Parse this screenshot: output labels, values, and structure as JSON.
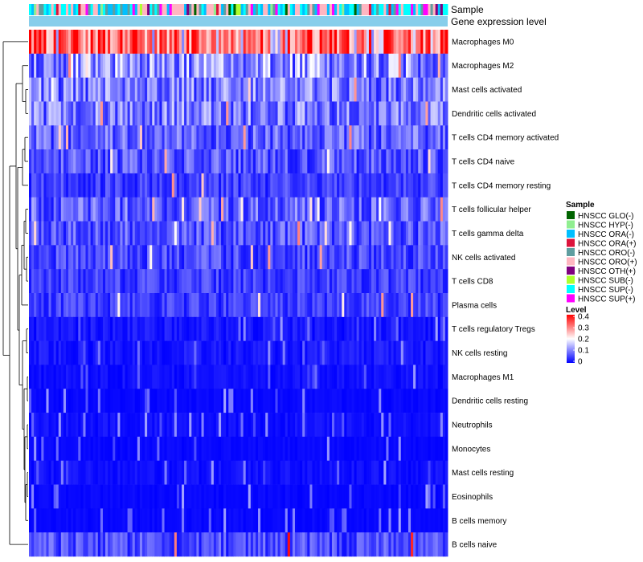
{
  "chart_data": {
    "type": "heatmap",
    "title": "",
    "annotation_tracks": [
      "Sample",
      "Gene expression level"
    ],
    "rows": [
      "Macrophages M0",
      "Macrophages M2",
      "Mast cells activated",
      "Dendritic cells activated",
      "T cells CD4 memory activated",
      "T cells CD4 naive",
      "T cells CD4 memory resting",
      "T cells follicular helper",
      "T cells gamma delta",
      "NK cells activated",
      "T cells CD8",
      "Plasma cells",
      "T cells regulatory  Tregs",
      "NK cells resting",
      "Macrophages M1",
      "Dendritic cells resting",
      "Neutrophils",
      "Monocytes",
      "Mast cells resting",
      "Eosinophils",
      "B cells memory",
      "B cells naive"
    ],
    "approx_row_mean_level": [
      0.33,
      0.12,
      0.1,
      0.1,
      0.08,
      0.07,
      0.05,
      0.08,
      0.07,
      0.06,
      0.05,
      0.05,
      0.03,
      0.03,
      0.02,
      0.01,
      0.02,
      0.01,
      0.02,
      0.01,
      0.01,
      0.06
    ],
    "n_columns": 170,
    "sample_legend": {
      "title": "Sample",
      "items": [
        {
          "label": "HNSCC GLO(-)",
          "color": "#006400"
        },
        {
          "label": "HNSCC HYP(-)",
          "color": "#90ee90"
        },
        {
          "label": "HNSCC ORA(-)",
          "color": "#00bfff"
        },
        {
          "label": "HNSCC ORA(+)",
          "color": "#dc143c"
        },
        {
          "label": "HNSCC ORO(-)",
          "color": "#5f9ea0"
        },
        {
          "label": "HNSCC ORO(+)",
          "color": "#ffb6c1"
        },
        {
          "label": "HNSCC OTH(+)",
          "color": "#800080"
        },
        {
          "label": "HNSCC SUB(-)",
          "color": "#adff2f"
        },
        {
          "label": "HNSCC SUP(-)",
          "color": "#00ffff"
        },
        {
          "label": "HNSCC SUP(+)",
          "color": "#ff00ff"
        }
      ]
    },
    "level_legend": {
      "title": "Level",
      "ticks": [
        {
          "label": "0.4",
          "value": 0.4
        },
        {
          "label": "0.3",
          "value": 0.3
        },
        {
          "label": "0.2",
          "value": 0.2
        },
        {
          "label": "0.1",
          "value": 0.1
        },
        {
          "label": "0",
          "value": 0
        }
      ],
      "color_low": "#0000ff",
      "color_mid": "#ffffff",
      "color_high": "#ff0000",
      "range": [
        0,
        0.4
      ]
    },
    "gene_expression_track_color": "#87ceeb"
  }
}
